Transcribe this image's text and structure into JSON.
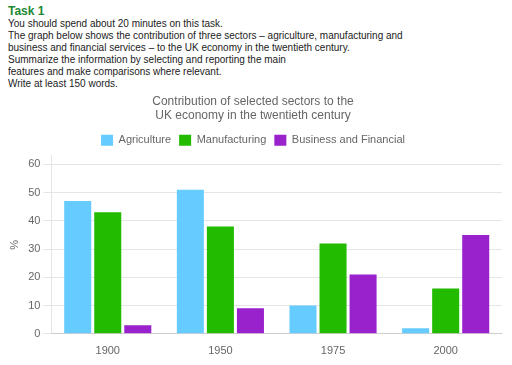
{
  "chart_data": {
    "type": "bar",
    "title": [
      "Contribution of selected sectors to the",
      "UK economy in the twentieth century"
    ],
    "annotations": [
      "Task 1",
      "You should spend about 20 minutes on this task.",
      "The graph below shows the contribution of three sectors – agriculture, manufacturing and",
      "business and financial services – to the UK economy in the twentieth century.",
      "Summarize the information by selecting and reporting the main",
      "features and make comparisons where relevant.",
      "Write at least 150 words."
    ],
    "y_label": "%",
    "categories": [
      "1900",
      "1950",
      "1975",
      "2000"
    ],
    "series": [
      {
        "name": "Agriculture",
        "color": "#66CCFF",
        "values": [
          47,
          51,
          10,
          2
        ]
      },
      {
        "name": "Manufacturing",
        "color": "#22BB00",
        "values": [
          43,
          38,
          32,
          16
        ]
      },
      {
        "name": "Business and Financial",
        "color": "#9922CC",
        "values": [
          3,
          9,
          21,
          35
        ]
      }
    ],
    "ylim": [
      0,
      63
    ],
    "yticks": [
      0,
      10,
      20,
      30,
      40,
      50,
      60
    ],
    "grid": true,
    "legend": "top"
  }
}
